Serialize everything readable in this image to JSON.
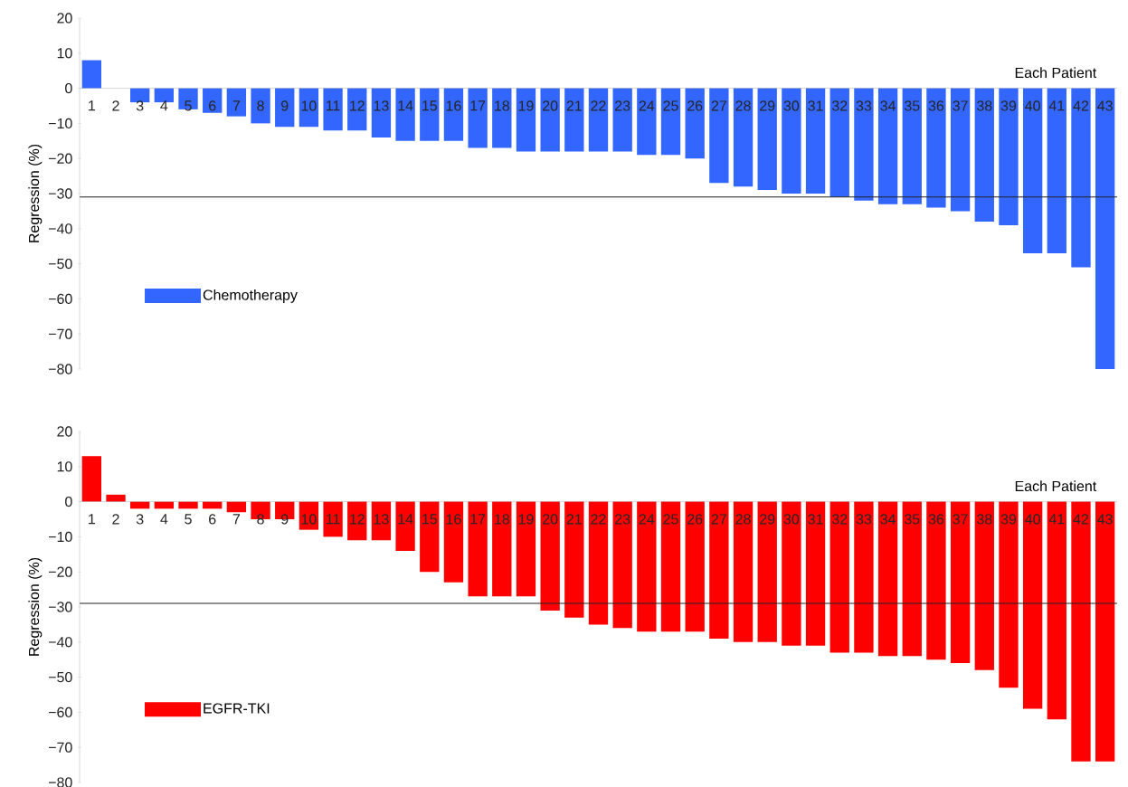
{
  "chart_data": [
    {
      "type": "bar",
      "categories": [
        "1",
        "2",
        "3",
        "4",
        "5",
        "6",
        "7",
        "8",
        "9",
        "10",
        "11",
        "12",
        "13",
        "14",
        "15",
        "16",
        "17",
        "18",
        "19",
        "20",
        "21",
        "22",
        "23",
        "24",
        "25",
        "26",
        "27",
        "28",
        "29",
        "30",
        "31",
        "32",
        "33",
        "34",
        "35",
        "36",
        "37",
        "38",
        "39",
        "40",
        "41",
        "42",
        "43"
      ],
      "series": [
        {
          "name": "Chemotherapy",
          "color": "#3366ff",
          "values": [
            8,
            0,
            -4,
            -4,
            -6,
            -7,
            -8,
            -10,
            -11,
            -11,
            -12,
            -12,
            -14,
            -15,
            -15,
            -15,
            -17,
            -17,
            -18,
            -18,
            -18,
            -18,
            -18,
            -19,
            -19,
            -20,
            -27,
            -28,
            -29,
            -30,
            -30,
            -31,
            -32,
            -33,
            -33,
            -34,
            -35,
            -38,
            -39,
            -47,
            -47,
            -51,
            -80
          ]
        }
      ],
      "xlabel": "Each Patient",
      "ylabel": "Regression (%)",
      "ylim": [
        -80,
        20
      ],
      "yticks": [
        {
          "value": -80,
          "label": "−80"
        },
        {
          "value": -70,
          "label": "−70"
        },
        {
          "value": -60,
          "label": "−60"
        },
        {
          "value": -50,
          "label": "−50"
        },
        {
          "value": -40,
          "label": "−40"
        },
        {
          "value": -30,
          "label": "−30"
        },
        {
          "value": -20,
          "label": "−20"
        },
        {
          "value": -10,
          "label": "−10"
        },
        0,
        10,
        20
      ],
      "ref_lines": [
        {
          "axis": "y",
          "value": -31,
          "color": "#222222"
        }
      ],
      "legend": "bottom left"
    },
    {
      "type": "bar",
      "categories": [
        "1",
        "2",
        "3",
        "4",
        "5",
        "6",
        "7",
        "8",
        "9",
        "10",
        "11",
        "12",
        "13",
        "14",
        "15",
        "16",
        "17",
        "18",
        "19",
        "20",
        "21",
        "22",
        "23",
        "24",
        "25",
        "26",
        "27",
        "28",
        "29",
        "30",
        "31",
        "32",
        "33",
        "34",
        "35",
        "36",
        "37",
        "38",
        "39",
        "40",
        "41",
        "42",
        "43"
      ],
      "series": [
        {
          "name": "EGFR-TKI",
          "color": "#ff0000",
          "values": [
            13,
            2,
            -2,
            -2,
            -2,
            -2,
            -3,
            -5,
            -5,
            -8,
            -10,
            -11,
            -11,
            -14,
            -20,
            -23,
            -27,
            -27,
            -27,
            -31,
            -33,
            -35,
            -36,
            -37,
            -37,
            -37,
            -39,
            -40,
            -40,
            -41,
            -41,
            -43,
            -43,
            -44,
            -44,
            -45,
            -46,
            -48,
            -53,
            -59,
            -62,
            -74,
            -74
          ]
        }
      ],
      "xlabel": "Each Patient",
      "ylabel": "Regression (%)",
      "ylim": [
        -80,
        20
      ],
      "yticks": [
        {
          "value": -80,
          "label": "−80"
        },
        {
          "value": -70,
          "label": "−70"
        },
        {
          "value": -60,
          "label": "−60"
        },
        {
          "value": -50,
          "label": "−50"
        },
        {
          "value": -40,
          "label": "−40"
        },
        {
          "value": -30,
          "label": "−30"
        },
        {
          "value": -20,
          "label": "−20"
        },
        {
          "value": -10,
          "label": "−10"
        },
        0,
        10,
        20
      ],
      "ref_lines": [
        {
          "axis": "y",
          "value": -29,
          "color": "#222222"
        }
      ],
      "legend": "bottom left"
    }
  ]
}
